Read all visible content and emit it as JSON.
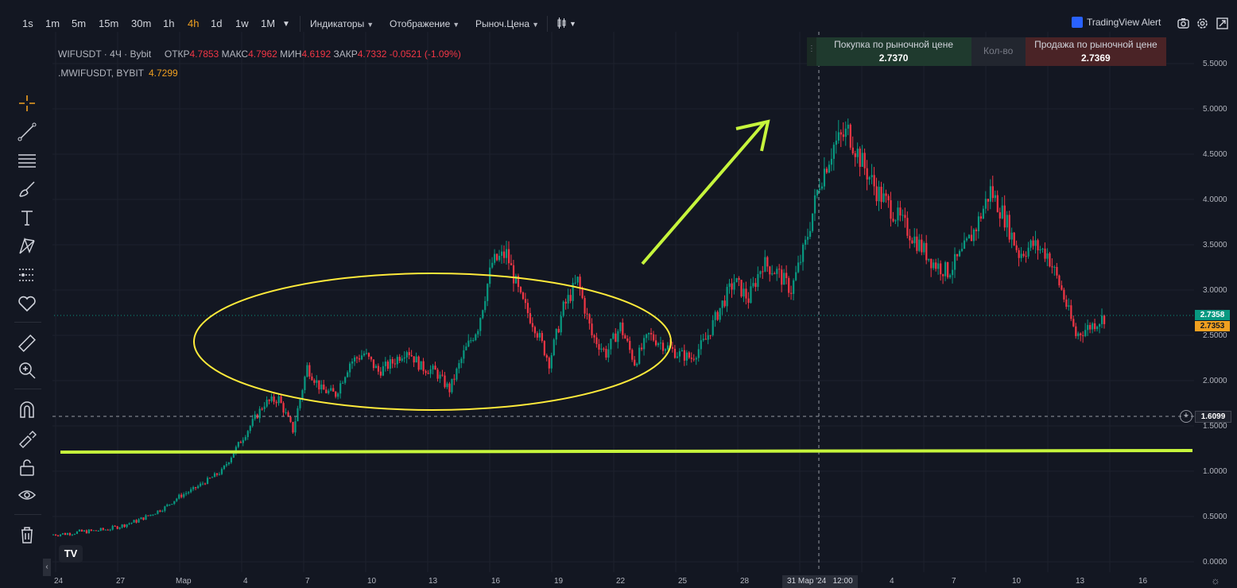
{
  "toolbar": {
    "timeframes": [
      "1s",
      "1m",
      "5m",
      "15m",
      "30m",
      "1h",
      "4h",
      "1d",
      "1w",
      "1M"
    ],
    "active_timeframe": "4h",
    "menus": [
      "Индикаторы",
      "Отображение",
      "Рыноч.Цена"
    ],
    "alert_label": "TradingView Alert"
  },
  "legend": {
    "symbol": "WIFUSDT",
    "interval": "4Ч",
    "exchange": "Bybit",
    "open_label": "ОТКР",
    "open": "4.7853",
    "high_label": "МАКС",
    "high": "4.7962",
    "low_label": "МИН",
    "low": "4.6192",
    "close_label": "ЗАКР",
    "close": "4.7332",
    "change": "-0.0521 (-1.09%)",
    "secondary_symbol": ".MWIFUSDT, BYBIT",
    "secondary_value": "4.7299"
  },
  "trade_panel": {
    "buy_label": "Покупка по рыночной цене",
    "buy_price": "2.7370",
    "qty_label": "Кол-во",
    "sell_label": "Продажа по рыночной цене",
    "sell_price": "2.7369"
  },
  "price_axis": {
    "ticks": [
      "5.5000",
      "5.0000",
      "4.5000",
      "4.0000",
      "3.5000",
      "3.0000",
      "2.5000",
      "2.0000",
      "1.5000",
      "1.0000",
      "0.5000",
      "0.0000"
    ],
    "last_price": "2.7358",
    "secondary_price": "2.7353",
    "crosshair_price": "1.6099"
  },
  "time_axis": {
    "ticks": [
      "24",
      "27",
      "Мар",
      "4",
      "7",
      "10",
      "13",
      "16",
      "19",
      "22",
      "25",
      "28",
      "4",
      "7",
      "10",
      "13",
      "16"
    ],
    "crosshair_time": "31 Мар '24",
    "crosshair_hour": "12:00"
  },
  "chart_data": {
    "type": "candlestick",
    "ylim": [
      0,
      5.5
    ],
    "closes": [
      0.3,
      0.31,
      0.33,
      0.34,
      0.36,
      0.4,
      0.45,
      0.52,
      0.6,
      0.72,
      0.8,
      0.9,
      1.0,
      1.25,
      1.5,
      1.75,
      1.8,
      1.45,
      2.15,
      1.9,
      1.85,
      2.2,
      2.3,
      2.1,
      2.2,
      2.35,
      2.15,
      2.1,
      1.9,
      2.3,
      2.6,
      3.3,
      3.4,
      2.9,
      2.6,
      2.2,
      2.8,
      3.1,
      2.5,
      2.3,
      2.6,
      2.2,
      2.5,
      2.4,
      2.3,
      2.25,
      2.45,
      2.8,
      3.1,
      2.9,
      3.3,
      3.2,
      3.0,
      3.5,
      4.2,
      4.6,
      4.75,
      4.4,
      4.1,
      3.9,
      3.7,
      3.5,
      3.3,
      3.2,
      3.4,
      3.7,
      4.1,
      3.8,
      3.4,
      3.5,
      3.4,
      3.0,
      2.5,
      2.6,
      2.7
    ],
    "colors": {
      "up": "#089981",
      "down": "#f23645",
      "bg": "#131722"
    }
  },
  "annotations": {
    "ellipse_color": "#ffeb3b",
    "arrow_color": "#c6f53c",
    "line_color": "#c6f53c"
  }
}
